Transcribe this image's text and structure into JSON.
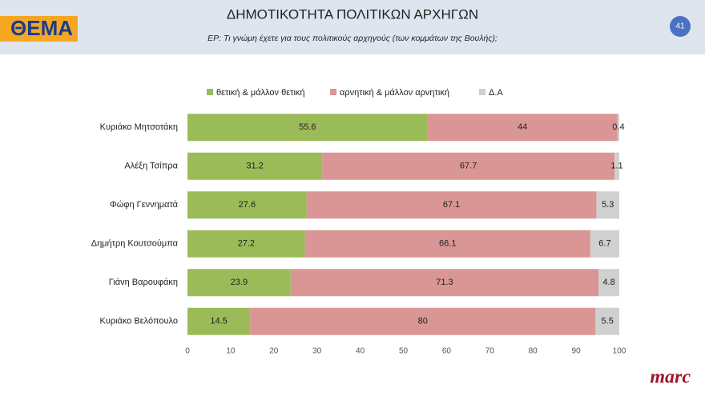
{
  "header": {
    "logo": "ΘΕΜΑ",
    "page_number": "41"
  },
  "footer": {
    "brand": "marc"
  },
  "chart_data": {
    "type": "bar",
    "orientation": "horizontal",
    "stacked": true,
    "title": "ΔΗΜΟΤΙΚΟΤΗΤΑ ΠΟΛΙΤΙΚΩΝ ΑΡΧΗΓΩΝ",
    "subtitle": "ΕΡ: Τι γνώμη έχετε για τους πολιτικούς αρχηγούς (των κομμάτων της Βουλής);",
    "categories": [
      "Κυριάκο Μητσοτάκη",
      "Αλέξη Τσίπρα",
      "Φώφη Γεννηματά",
      "Δημήτρη Κουτσούμπα",
      "Γιάνη Βαρουφάκη",
      "Κυριάκο Βελόπουλο"
    ],
    "series": [
      {
        "name": "θετική & μάλλον θετική",
        "color": "#9bbb59",
        "values": [
          55.6,
          31.2,
          27.6,
          27.2,
          23.9,
          14.5
        ]
      },
      {
        "name": "αρνητική & μάλλον αρνητική",
        "color": "#d99694",
        "values": [
          44,
          67.7,
          67.1,
          66.1,
          71.3,
          80
        ]
      },
      {
        "name": "Δ.Α",
        "color": "#d0d0d0",
        "values": [
          0.4,
          1.1,
          5.3,
          6.7,
          4.8,
          5.5
        ]
      }
    ],
    "xlim": [
      0,
      100
    ],
    "xticks": [
      0,
      10,
      20,
      30,
      40,
      50,
      60,
      70,
      80,
      90,
      100
    ],
    "legend": "top"
  }
}
